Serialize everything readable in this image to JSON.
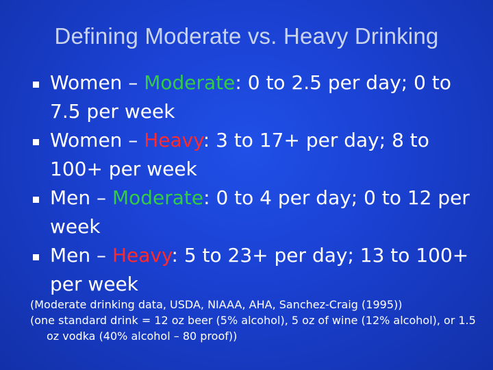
{
  "slide": {
    "title": "Defining Moderate vs. Heavy Drinking",
    "bullets": [
      {
        "prefix": "Women – ",
        "term": "Moderate",
        "rest": ": 0 to 2.5 per day; 0 to 7.5 per week",
        "term_color": "#33cc44"
      },
      {
        "prefix": "Women – ",
        "term": "Heavy",
        "rest": ": 3 to 17+ per day; 8 to 100+ per week",
        "term_color": "#ff2a2a"
      },
      {
        "prefix": "Men – ",
        "term": "Moderate",
        "rest": ": 0 to 4 per day; 0 to 12 per week",
        "term_color": "#33cc44"
      },
      {
        "prefix": "Men – ",
        "term": "Heavy",
        "rest": ": 5 to 23+ per day; 13 to 100+ per week",
        "term_color": "#ff2a2a"
      }
    ],
    "notes": [
      "(Moderate drinking data, USDA, NIAAA, AHA, Sanchez-Craig (1995))",
      "(one standard drink = 12 oz beer (5% alcohol), 5 oz of wine (12% alcohol), or 1.5 oz vodka (40% alcohol – 80 proof))"
    ]
  }
}
